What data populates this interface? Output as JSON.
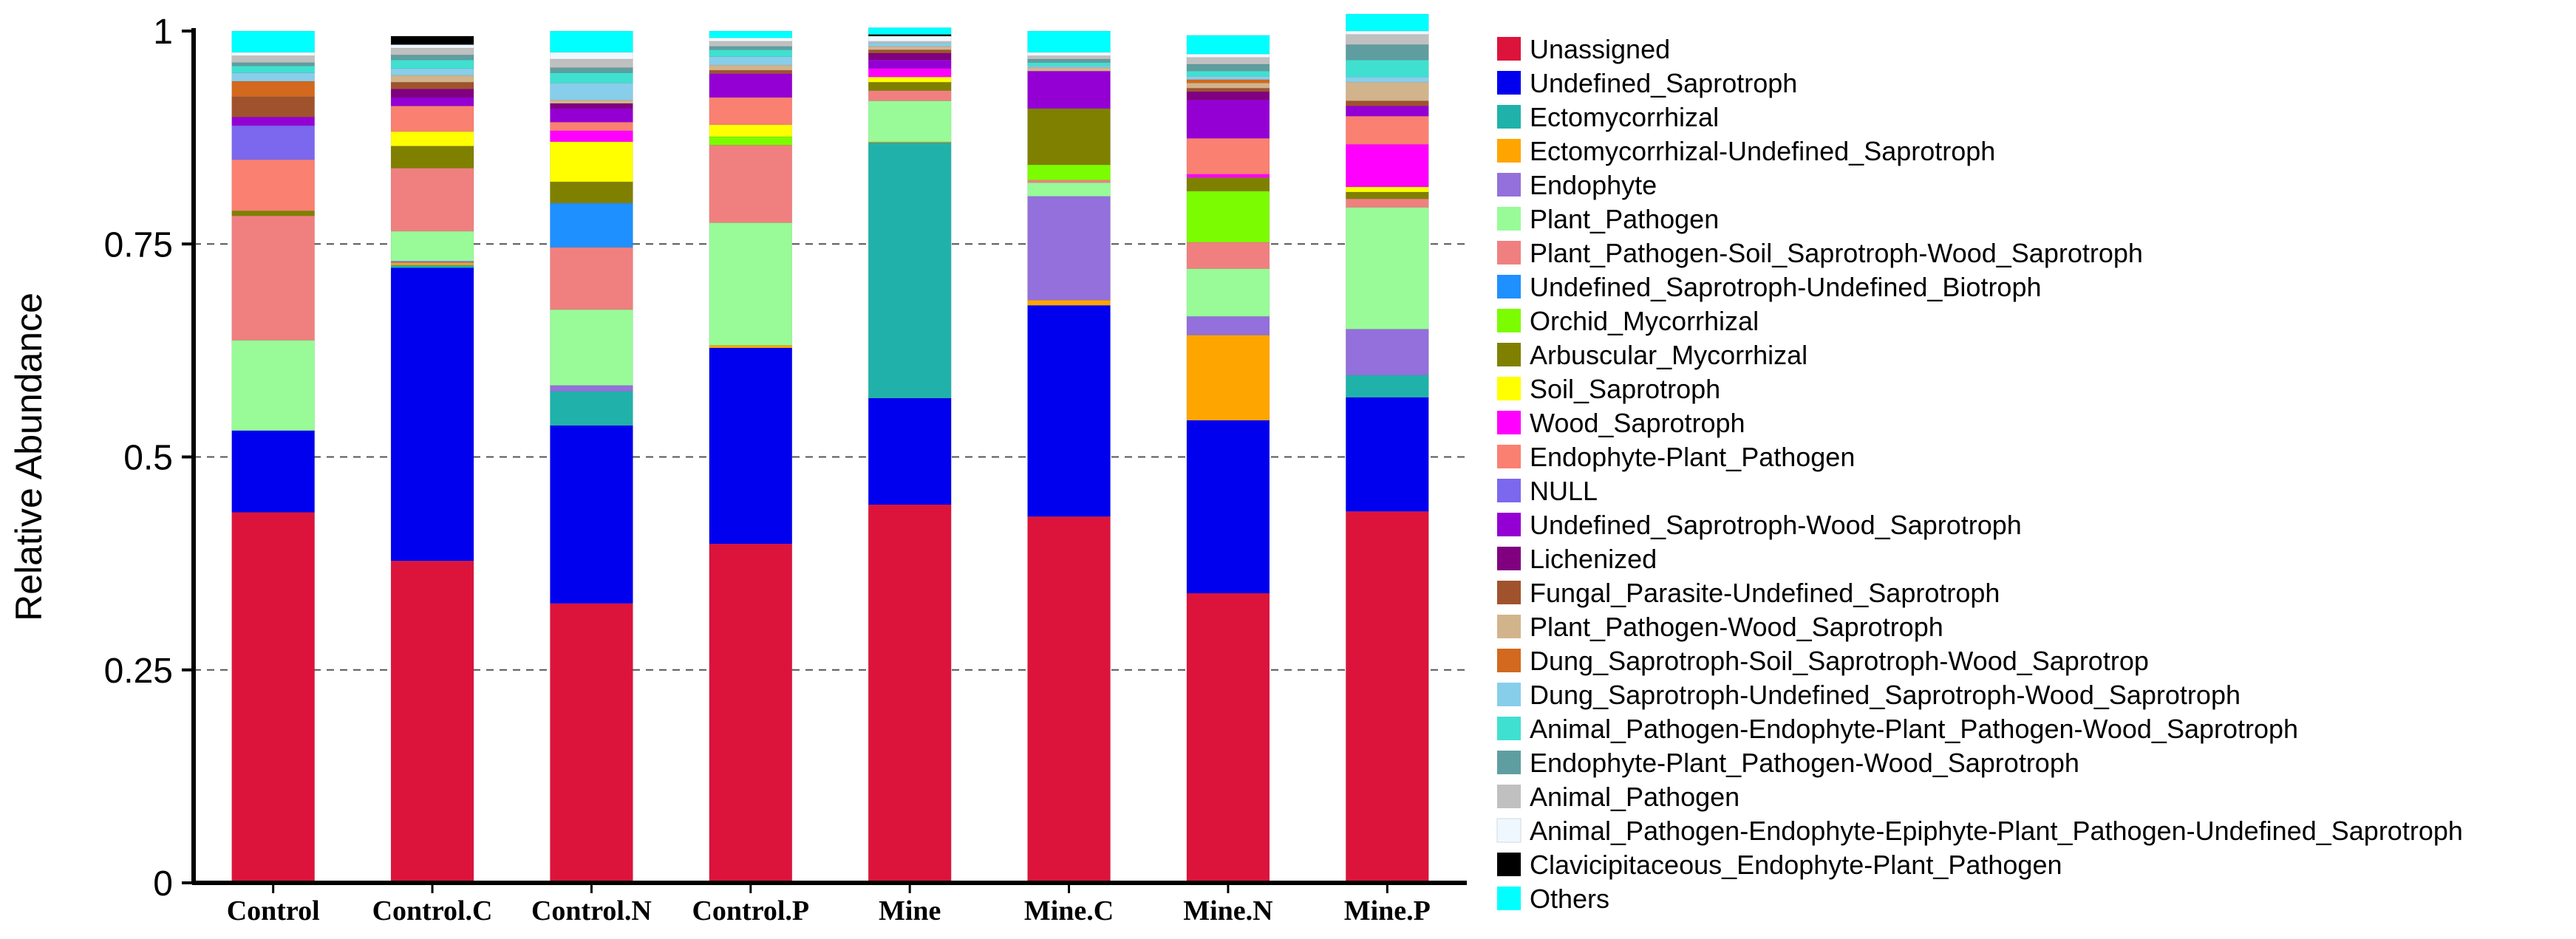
{
  "chart_data": {
    "type": "bar",
    "stacked": true,
    "title": "",
    "xlabel": "",
    "ylabel": "Relative Abundance",
    "ylim": [
      0,
      1
    ],
    "yticks": [
      "0",
      "0.25",
      "0.5",
      "0.75",
      "1"
    ],
    "gridlines": "dashed at 0.25, 0.5, 0.75",
    "legend_position": "right",
    "categories": [
      "Control",
      "Control.C",
      "Control.N",
      "Control.P",
      "Mine",
      "Mine.C",
      "Mine.N",
      "Mine.P"
    ],
    "series": [
      {
        "name": "Unassigned",
        "color": "#DC143C",
        "values": [
          0.435,
          0.378,
          0.328,
          0.398,
          0.444,
          0.43,
          0.34,
          0.436
        ]
      },
      {
        "name": "Undefined_Saprotroph",
        "color": "#0000EE",
        "values": [
          0.096,
          0.344,
          0.209,
          0.23,
          0.125,
          0.248,
          0.203,
          0.134
        ]
      },
      {
        "name": "Ectomycorrhizal",
        "color": "#20B2AA",
        "values": [
          0.0,
          0.003,
          0.04,
          0.0,
          0.3,
          0.0,
          0.0,
          0.026
        ]
      },
      {
        "name": "Ectomycorrhizal-Undefined_Saprotroph",
        "color": "#FFA500",
        "values": [
          0.0,
          0.003,
          0.0,
          0.003,
          0.001,
          0.006,
          0.1,
          0.0
        ]
      },
      {
        "name": "Endophyte",
        "color": "#9370DB",
        "values": [
          0.0,
          0.002,
          0.007,
          0.0,
          0.0,
          0.122,
          0.022,
          0.054
        ]
      },
      {
        "name": "Plant_Pathogen",
        "color": "#98FB98",
        "values": [
          0.106,
          0.035,
          0.089,
          0.144,
          0.048,
          0.016,
          0.056,
          0.143
        ]
      },
      {
        "name": "Plant_Pathogen-Soil_Saprotroph-Wood_Saprotroph",
        "color": "#F08080",
        "values": [
          0.146,
          0.074,
          0.073,
          0.091,
          0.012,
          0.003,
          0.031,
          0.01
        ]
      },
      {
        "name": "Undefined_Saprotroph-Undefined_Biotroph",
        "color": "#1E90FF",
        "values": [
          0.0,
          0.0,
          0.052,
          0.0,
          0.0,
          0.0,
          0.0,
          0.0
        ]
      },
      {
        "name": "Orchid_Mycorrhizal",
        "color": "#7CFC00",
        "values": [
          0.0,
          0.0,
          0.0,
          0.01,
          0.0,
          0.018,
          0.06,
          0.0
        ]
      },
      {
        "name": "Arbuscular_Mycorrhizal",
        "color": "#808000",
        "values": [
          0.006,
          0.026,
          0.025,
          0.0,
          0.01,
          0.066,
          0.016,
          0.008
        ]
      },
      {
        "name": "Soil_Saprotroph",
        "color": "#FFFF00",
        "values": [
          0.0,
          0.017,
          0.047,
          0.014,
          0.006,
          0.0,
          0.0,
          0.006
        ]
      },
      {
        "name": "Wood_Saprotroph",
        "color": "#FF00FF",
        "values": [
          0.0,
          0.0,
          0.013,
          0.0,
          0.01,
          0.0,
          0.004,
          0.05
        ]
      },
      {
        "name": "Endophyte-Plant_Pathogen",
        "color": "#FA8072",
        "values": [
          0.06,
          0.03,
          0.01,
          0.032,
          0.0,
          0.0,
          0.042,
          0.033
        ]
      },
      {
        "name": "NULL",
        "color": "#7B68EE",
        "values": [
          0.04,
          0.0,
          0.0,
          0.0,
          0.0,
          0.0,
          0.0,
          0.0
        ]
      },
      {
        "name": "Undefined_Saprotroph-Wood_Saprotroph",
        "color": "#9400D3",
        "values": [
          0.01,
          0.01,
          0.016,
          0.028,
          0.01,
          0.044,
          0.045,
          0.012
        ]
      },
      {
        "name": "Lichenized",
        "color": "#800080",
        "values": [
          0.0,
          0.01,
          0.006,
          0.0,
          0.008,
          0.0,
          0.01,
          0.0
        ]
      },
      {
        "name": "Fungal_Parasite-Undefined_Saprotroph",
        "color": "#A0522D",
        "values": [
          0.024,
          0.008,
          0.0,
          0.004,
          0.004,
          0.0,
          0.004,
          0.006
        ]
      },
      {
        "name": "Plant_Pathogen-Wood_Saprotroph",
        "color": "#D2B48C",
        "values": [
          0.0,
          0.008,
          0.004,
          0.006,
          0.004,
          0.004,
          0.006,
          0.022
        ]
      },
      {
        "name": "Dung_Saprotroph-Soil_Saprotroph-Wood_Saprotrop",
        "color": "#D2691E",
        "values": [
          0.018,
          0.0,
          0.0,
          0.0,
          0.0,
          0.0,
          0.004,
          0.0
        ]
      },
      {
        "name": "Dung_Saprotroph-Undefined_Saprotroph-Wood_Saprotroph",
        "color": "#87CEEB",
        "values": [
          0.01,
          0.008,
          0.02,
          0.01,
          0.004,
          0.002,
          0.004,
          0.006
        ]
      },
      {
        "name": "Animal_Pathogen-Endophyte-Plant_Pathogen-Wood_Saprotroph",
        "color": "#40E0D0",
        "values": [
          0.008,
          0.01,
          0.012,
          0.008,
          0.0,
          0.004,
          0.006,
          0.02
        ]
      },
      {
        "name": "Endophyte-Plant_Pathogen-Wood_Saprotroph",
        "color": "#5F9EA0",
        "values": [
          0.004,
          0.006,
          0.006,
          0.004,
          0.0,
          0.004,
          0.008,
          0.018
        ]
      },
      {
        "name": "Animal_Pathogen",
        "color": "#C0C0C0",
        "values": [
          0.008,
          0.008,
          0.01,
          0.006,
          0.002,
          0.004,
          0.008,
          0.012
        ]
      },
      {
        "name": "Animal_Pathogen-Endophyte-Epiphyte-Plant_Pathogen-Undefined_Saprotroph",
        "color": "#F0F8FF",
        "values": [
          0.004,
          0.004,
          0.008,
          0.004,
          0.006,
          0.004,
          0.004,
          0.004
        ]
      },
      {
        "name": "Clavicipitaceous_Endophyte-Plant_Pathogen",
        "color": "#000000",
        "values": [
          0.0,
          0.01,
          0.0,
          0.0,
          0.002,
          0.0,
          0.0,
          0.0
        ]
      },
      {
        "name": "Others",
        "color": "#00FFFF",
        "values": [
          0.025,
          0.0,
          0.025,
          0.008,
          0.008,
          0.025,
          0.022,
          0.02
        ]
      }
    ]
  }
}
